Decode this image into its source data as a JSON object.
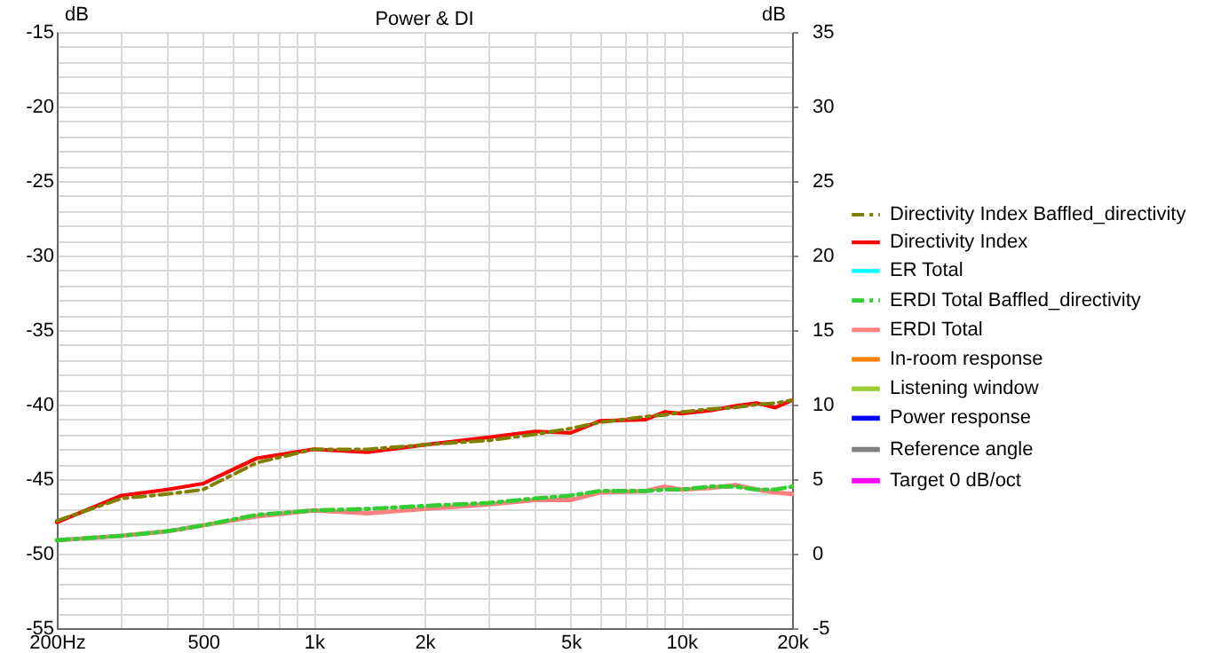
{
  "chart_data": {
    "type": "line",
    "title": "Power & DI",
    "ylabel": "dB",
    "y2label": "dB",
    "x": [
      200,
      300,
      400,
      500,
      700,
      1000,
      1400,
      2000,
      3000,
      4000,
      5000,
      6000,
      8000,
      9000,
      10000,
      12000,
      14000,
      16000,
      18000,
      20000
    ],
    "series": [
      {
        "name": "Directivity Index Baffled_directivity",
        "color": "#808000",
        "line_style": "dashed",
        "axis": "y2",
        "values": [
          2.2,
          3.7,
          4.0,
          4.3,
          6.1,
          7.0,
          7.0,
          7.3,
          7.6,
          8.0,
          8.4,
          8.8,
          9.2,
          9.3,
          9.5,
          9.7,
          9.8,
          10.0,
          10.1,
          10.3
        ]
      },
      {
        "name": "Directivity Index",
        "color": "#ff0000",
        "line_style": "solid",
        "axis": "y2",
        "values": [
          2.1,
          3.9,
          4.3,
          4.7,
          6.4,
          7.0,
          6.8,
          7.3,
          7.8,
          8.2,
          8.1,
          8.9,
          9.0,
          9.5,
          9.4,
          9.6,
          9.9,
          10.1,
          9.8,
          10.3
        ]
      },
      {
        "name": "ER Total",
        "color": "#00ffff",
        "line_style": "solid",
        "values": [
          null,
          null,
          null,
          null,
          null,
          null,
          null,
          null,
          null,
          null,
          null,
          null,
          null,
          null,
          null,
          null,
          null,
          null,
          null,
          null
        ]
      },
      {
        "name": "ERDI Total Baffled_directivity",
        "color": "#33cc33",
        "line_style": "dashed",
        "axis": "y2",
        "values": [
          0.9,
          1.2,
          1.5,
          1.9,
          2.6,
          2.9,
          3.0,
          3.2,
          3.4,
          3.7,
          3.9,
          4.2,
          4.2,
          4.3,
          4.3,
          4.5,
          4.5,
          4.3,
          4.3,
          4.5
        ]
      },
      {
        "name": "ERDI Total",
        "color": "#ff8080",
        "line_style": "solid",
        "axis": "y2",
        "values": [
          0.9,
          1.2,
          1.5,
          1.9,
          2.5,
          2.9,
          2.7,
          3.0,
          3.3,
          3.6,
          3.6,
          4.1,
          4.2,
          4.5,
          4.3,
          4.4,
          4.6,
          4.3,
          4.1,
          4.0
        ]
      },
      {
        "name": "In-room response",
        "color": "#ff8000",
        "line_style": "solid",
        "values": [
          null,
          null,
          null,
          null,
          null,
          null,
          null,
          null,
          null,
          null,
          null,
          null,
          null,
          null,
          null,
          null,
          null,
          null,
          null,
          null
        ]
      },
      {
        "name": "Listening window",
        "color": "#99cc33",
        "line_style": "solid",
        "values": [
          null,
          null,
          null,
          null,
          null,
          null,
          null,
          null,
          null,
          null,
          null,
          null,
          null,
          null,
          null,
          null,
          null,
          null,
          null,
          null
        ]
      },
      {
        "name": "Power response",
        "color": "#0000ff",
        "line_style": "solid",
        "values": [
          null,
          null,
          null,
          null,
          null,
          null,
          null,
          null,
          null,
          null,
          null,
          null,
          null,
          null,
          null,
          null,
          null,
          null,
          null,
          null
        ]
      },
      {
        "name": "Reference angle",
        "color": "#808080",
        "line_style": "solid",
        "values": [
          null,
          null,
          null,
          null,
          null,
          null,
          null,
          null,
          null,
          null,
          null,
          null,
          null,
          null,
          null,
          null,
          null,
          null,
          null,
          null
        ]
      },
      {
        "name": "Target 0 dB/oct",
        "color": "#ff00ff",
        "line_style": "solid",
        "values": [
          null,
          null,
          null,
          null,
          null,
          null,
          null,
          null,
          null,
          null,
          null,
          null,
          null,
          null,
          null,
          null,
          null,
          null,
          null,
          null
        ]
      }
    ],
    "log": "x",
    "xlim": [
      200,
      20000
    ],
    "xticks": [
      {
        "value": 200,
        "label": "200Hz"
      },
      {
        "value": 300,
        "label": null
      },
      {
        "value": 400,
        "label": null
      },
      {
        "value": 500,
        "label": "500"
      },
      {
        "value": 600,
        "label": null
      },
      {
        "value": 700,
        "label": null
      },
      {
        "value": 800,
        "label": null
      },
      {
        "value": 900,
        "label": null
      },
      {
        "value": 1000,
        "label": "1k"
      },
      {
        "value": 2000,
        "label": "2k"
      },
      {
        "value": 3000,
        "label": null
      },
      {
        "value": 4000,
        "label": null
      },
      {
        "value": 5000,
        "label": "5k"
      },
      {
        "value": 6000,
        "label": null
      },
      {
        "value": 7000,
        "label": null
      },
      {
        "value": 8000,
        "label": null
      },
      {
        "value": 9000,
        "label": null
      },
      {
        "value": 10000,
        "label": "10k"
      },
      {
        "value": 20000,
        "label": "20k"
      }
    ],
    "ylim": [
      -55,
      -15
    ],
    "yticks": [
      -55,
      {
        "value": -54,
        "label": null
      },
      {
        "value": -53,
        "label": null
      },
      {
        "value": -52,
        "label": null
      },
      {
        "value": -51,
        "label": null
      },
      -50,
      {
        "value": -49,
        "label": null
      },
      {
        "value": -48,
        "label": null
      },
      {
        "value": -47,
        "label": null
      },
      {
        "value": -46,
        "label": null
      },
      -45,
      {
        "value": -44,
        "label": null
      },
      {
        "value": -43,
        "label": null
      },
      {
        "value": -42,
        "label": null
      },
      {
        "value": -41,
        "label": null
      },
      -40,
      {
        "value": -39,
        "label": null
      },
      {
        "value": -38,
        "label": null
      },
      {
        "value": -37,
        "label": null
      },
      {
        "value": -36,
        "label": null
      },
      -35,
      {
        "value": -34,
        "label": null
      },
      {
        "value": -33,
        "label": null
      },
      {
        "value": -32,
        "label": null
      },
      {
        "value": -31,
        "label": null
      },
      -30,
      {
        "value": -29,
        "label": null
      },
      {
        "value": -28,
        "label": null
      },
      {
        "value": -27,
        "label": null
      },
      {
        "value": -26,
        "label": null
      },
      -25,
      {
        "value": -24,
        "label": null
      },
      {
        "value": -23,
        "label": null
      },
      {
        "value": -22,
        "label": null
      },
      {
        "value": -21,
        "label": null
      },
      -20,
      {
        "value": -19,
        "label": null
      },
      {
        "value": -18,
        "label": null
      },
      {
        "value": -17,
        "label": null
      },
      {
        "value": -16,
        "label": null
      },
      -15
    ],
    "y2lim": [
      -5,
      35
    ],
    "y2ticks": [
      -5,
      0,
      5,
      10,
      15,
      20,
      25,
      30,
      35
    ],
    "grid": true,
    "legend": "right"
  }
}
